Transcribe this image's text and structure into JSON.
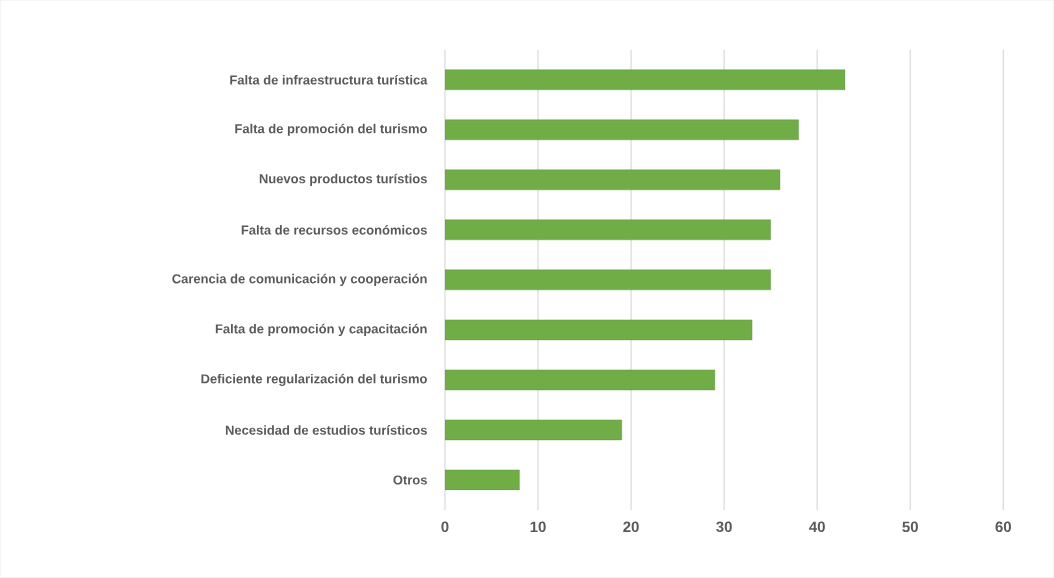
{
  "chart_data": {
    "type": "bar",
    "orientation": "horizontal",
    "categories": [
      "Falta de infraestructura turística",
      "Falta de promoción del turismo",
      "Nuevos productos turístios",
      "Falta de recursos económicos",
      "Carencia de comunicación y cooperación",
      "Falta de promoción y capacitación",
      "Deficiente regularización del turismo",
      "Necesidad de estudios turísticos",
      "Otros"
    ],
    "values": [
      43,
      38,
      36,
      35,
      35,
      33,
      29,
      19,
      8
    ],
    "color": "#70ad47",
    "xlim": [
      0,
      60
    ],
    "xticks": [
      0,
      10,
      20,
      30,
      40,
      50,
      60
    ],
    "grid": "x"
  }
}
